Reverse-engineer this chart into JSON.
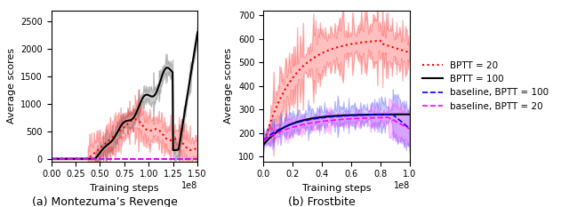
{
  "fig_width": 6.4,
  "fig_height": 2.33,
  "dpi": 100,
  "subplot_left_title": "(a) Montezuma’s Revenge",
  "subplot_right_title": "(b) Frostbite",
  "xlabel": "Training steps",
  "ylabel": "Average scores",
  "left_xlim": [
    0,
    150000000.0
  ],
  "left_ylim": [
    -50,
    2700
  ],
  "right_xlim": [
    0,
    100000000.0
  ],
  "right_ylim": [
    80,
    720
  ],
  "left_xticks": [
    0,
    25000000.0,
    50000000.0,
    75000000.0,
    100000000.0,
    125000000.0,
    150000000.0
  ],
  "left_xtick_labels": [
    "0.00",
    "0.25",
    "0.50",
    "0.75",
    "1.00",
    "1.25",
    "1.50"
  ],
  "right_xticks": [
    0,
    20000000.0,
    40000000.0,
    60000000.0,
    80000000.0,
    100000000.0
  ],
  "right_xtick_labels": [
    "0.0",
    "0.2",
    "0.4",
    "0.6",
    "0.8",
    "1.0"
  ],
  "left_yticks": [
    0,
    500,
    1000,
    1500,
    2000,
    2500
  ],
  "right_yticks": [
    100,
    200,
    300,
    400,
    500,
    600,
    700
  ],
  "color_bptt20": "#ff0000",
  "color_bptt100": "#000000",
  "color_baseline100": "#0000ff",
  "color_baseline20": "#ff00ff",
  "legend_labels": [
    "BPTT = 20",
    "BPTT = 100",
    "baseline, BPTT = 100",
    "baseline, BPTT = 20"
  ],
  "seed": 42
}
